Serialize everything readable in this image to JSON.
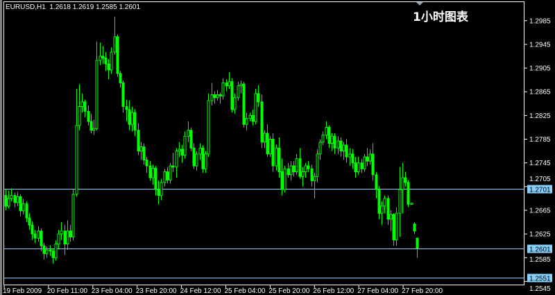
{
  "header": {
    "symbol": "EURUSD,H1",
    "ohlc": "1.2618 1.2619 1.2585 1.2601"
  },
  "title": "1小时图表",
  "colors": {
    "background": "#000000",
    "candle": "#00FF00",
    "frame": "#FFFFFF",
    "hline": "#87CEFA",
    "label_bg": "#87CEFA"
  },
  "chart_data": {
    "type": "candlestick",
    "ylim": [
      1.2539,
      1.3017
    ],
    "yticks": [
      "1.2985",
      "1.2945",
      "1.2905",
      "1.2865",
      "1.2825",
      "1.2785",
      "1.2745",
      "1.2705",
      "1.2665",
      "1.2625",
      "1.2585",
      "1.2545"
    ],
    "xticks": [
      "19 Feb 2009",
      "20 Feb 11:00",
      "23 Feb 04:00",
      "23 Feb 20:00",
      "24 Feb 12:00",
      "25 Feb 04:00",
      "25 Feb 20:00",
      "26 Feb 12:00",
      "27 Feb 04:00",
      "27 Feb 20:00"
    ],
    "hlines": [
      "1.2701",
      "1.2601",
      "1.2551"
    ],
    "ohlc": [
      [
        1.269,
        1.27,
        1.2665,
        1.2672
      ],
      [
        1.2672,
        1.2698,
        1.2668,
        1.2685
      ],
      [
        1.2685,
        1.2702,
        1.268,
        1.269
      ],
      [
        1.269,
        1.2695,
        1.267,
        1.2678
      ],
      [
        1.2678,
        1.2696,
        1.2672,
        1.2688
      ],
      [
        1.2688,
        1.2692,
        1.2655,
        1.2664
      ],
      [
        1.2664,
        1.2684,
        1.2658,
        1.2676
      ],
      [
        1.2676,
        1.268,
        1.2645,
        1.2652
      ],
      [
        1.2652,
        1.266,
        1.2632,
        1.264
      ],
      [
        1.264,
        1.2646,
        1.2615,
        1.2625
      ],
      [
        1.2625,
        1.2632,
        1.261,
        1.2618
      ],
      [
        1.2618,
        1.2638,
        1.2612,
        1.263
      ],
      [
        1.263,
        1.2634,
        1.2596,
        1.2605
      ],
      [
        1.2605,
        1.261,
        1.2582,
        1.2592
      ],
      [
        1.2592,
        1.2604,
        1.2585,
        1.2598
      ],
      [
        1.2598,
        1.2606,
        1.2588,
        1.2596
      ],
      [
        1.2596,
        1.26,
        1.2575,
        1.2585
      ],
      [
        1.2585,
        1.2614,
        1.258,
        1.2608
      ],
      [
        1.2608,
        1.2632,
        1.26,
        1.2625
      ],
      [
        1.2625,
        1.2645,
        1.2615,
        1.263
      ],
      [
        1.263,
        1.264,
        1.259,
        1.2608
      ],
      [
        1.2608,
        1.2648,
        1.2598,
        1.263
      ],
      [
        1.263,
        1.264,
        1.2612,
        1.262
      ],
      [
        1.262,
        1.27,
        1.2614,
        1.2692
      ],
      [
        1.2692,
        1.287,
        1.2688,
        1.2808
      ],
      [
        1.2808,
        1.2878,
        1.28,
        1.284
      ],
      [
        1.284,
        1.2862,
        1.283,
        1.2848
      ],
      [
        1.2848,
        1.2852,
        1.2822,
        1.2832
      ],
      [
        1.2832,
        1.2842,
        1.2808,
        1.2815
      ],
      [
        1.2815,
        1.2828,
        1.2795,
        1.28
      ],
      [
        1.28,
        1.2818,
        1.2792,
        1.2803
      ],
      [
        1.2803,
        1.295,
        1.28,
        1.2918
      ],
      [
        1.2918,
        1.2948,
        1.291,
        1.2925
      ],
      [
        1.2925,
        1.2942,
        1.2912,
        1.2922
      ],
      [
        1.2922,
        1.2932,
        1.29,
        1.2912
      ],
      [
        1.2912,
        1.292,
        1.2886,
        1.2902
      ],
      [
        1.2902,
        1.294,
        1.2895,
        1.2932
      ],
      [
        1.2932,
        1.2992,
        1.2928,
        1.2958
      ],
      [
        1.2958,
        1.2962,
        1.289,
        1.2896
      ],
      [
        1.2896,
        1.29,
        1.2872,
        1.288
      ],
      [
        1.288,
        1.2884,
        1.283,
        1.284
      ],
      [
        1.284,
        1.2852,
        1.2815,
        1.2835
      ],
      [
        1.2835,
        1.285,
        1.28,
        1.281
      ],
      [
        1.281,
        1.284,
        1.2798,
        1.283
      ],
      [
        1.283,
        1.2836,
        1.279,
        1.28
      ],
      [
        1.28,
        1.2812,
        1.2758,
        1.2765
      ],
      [
        1.2765,
        1.278,
        1.275,
        1.2772
      ],
      [
        1.2772,
        1.2778,
        1.2742,
        1.275
      ],
      [
        1.275,
        1.2755,
        1.2728,
        1.274
      ],
      [
        1.274,
        1.2748,
        1.2715,
        1.272
      ],
      [
        1.272,
        1.2742,
        1.2708,
        1.2736
      ],
      [
        1.2736,
        1.274,
        1.269,
        1.27
      ],
      [
        1.27,
        1.2715,
        1.2675,
        1.269
      ],
      [
        1.269,
        1.2718,
        1.2682,
        1.2712
      ],
      [
        1.2712,
        1.2735,
        1.2705,
        1.273
      ],
      [
        1.273,
        1.2738,
        1.271,
        1.2716
      ],
      [
        1.2716,
        1.2745,
        1.271,
        1.274
      ],
      [
        1.274,
        1.2762,
        1.273,
        1.2738
      ],
      [
        1.2738,
        1.277,
        1.272,
        1.2765
      ],
      [
        1.2765,
        1.278,
        1.2755,
        1.2768
      ],
      [
        1.2768,
        1.2775,
        1.2745,
        1.2758
      ],
      [
        1.2758,
        1.2798,
        1.2752,
        1.279
      ],
      [
        1.279,
        1.2815,
        1.278,
        1.28
      ],
      [
        1.28,
        1.2805,
        1.2765,
        1.277
      ],
      [
        1.277,
        1.2778,
        1.2735,
        1.274
      ],
      [
        1.274,
        1.2765,
        1.2732,
        1.276
      ],
      [
        1.276,
        1.2778,
        1.275,
        1.277
      ],
      [
        1.277,
        1.2775,
        1.2728,
        1.2735
      ],
      [
        1.2735,
        1.2765,
        1.2728,
        1.276
      ],
      [
        1.276,
        1.2862,
        1.2755,
        1.285
      ],
      [
        1.285,
        1.288,
        1.2842,
        1.286
      ],
      [
        1.286,
        1.2866,
        1.2845,
        1.2855
      ],
      [
        1.2855,
        1.2868,
        1.285,
        1.286
      ],
      [
        1.286,
        1.2864,
        1.2845,
        1.2858
      ],
      [
        1.2858,
        1.2888,
        1.2852,
        1.288
      ],
      [
        1.288,
        1.2886,
        1.2866,
        1.2875
      ],
      [
        1.2875,
        1.2898,
        1.287,
        1.2882
      ],
      [
        1.2882,
        1.2888,
        1.283,
        1.2835
      ],
      [
        1.2835,
        1.2862,
        1.2828,
        1.2855
      ],
      [
        1.2855,
        1.2882,
        1.285,
        1.2875
      ],
      [
        1.2875,
        1.2884,
        1.2862,
        1.2878
      ],
      [
        1.2878,
        1.2882,
        1.2805,
        1.281
      ],
      [
        1.281,
        1.283,
        1.28,
        1.282
      ],
      [
        1.282,
        1.283,
        1.2815,
        1.2825
      ],
      [
        1.2825,
        1.2835,
        1.2808,
        1.2815
      ],
      [
        1.2815,
        1.287,
        1.281,
        1.2862
      ],
      [
        1.2862,
        1.2876,
        1.284,
        1.2848
      ],
      [
        1.2848,
        1.286,
        1.277,
        1.278
      ],
      [
        1.278,
        1.28,
        1.277,
        1.2795
      ],
      [
        1.2795,
        1.281,
        1.2755,
        1.276
      ],
      [
        1.276,
        1.279,
        1.2755,
        1.2785
      ],
      [
        1.2785,
        1.2795,
        1.273,
        1.274
      ],
      [
        1.274,
        1.2776,
        1.2732,
        1.277
      ],
      [
        1.277,
        1.2788,
        1.272,
        1.273
      ],
      [
        1.273,
        1.2752,
        1.269,
        1.27
      ],
      [
        1.27,
        1.274,
        1.2695,
        1.2735
      ],
      [
        1.2735,
        1.2745,
        1.272,
        1.2725
      ],
      [
        1.2725,
        1.2748,
        1.2715,
        1.274
      ],
      [
        1.274,
        1.2748,
        1.2722,
        1.273
      ],
      [
        1.273,
        1.276,
        1.2725,
        1.2752
      ],
      [
        1.2752,
        1.277,
        1.2718,
        1.2722
      ],
      [
        1.2722,
        1.2738,
        1.2705,
        1.273
      ],
      [
        1.273,
        1.2745,
        1.272,
        1.274
      ],
      [
        1.274,
        1.2748,
        1.273,
        1.2735
      ],
      [
        1.2735,
        1.2742,
        1.2705,
        1.2715
      ],
      [
        1.2715,
        1.2728,
        1.2685,
        1.2722
      ],
      [
        1.2722,
        1.2768,
        1.2712,
        1.276
      ],
      [
        1.276,
        1.2785,
        1.275,
        1.278
      ],
      [
        1.278,
        1.2798,
        1.2775,
        1.2792
      ],
      [
        1.2792,
        1.2815,
        1.2785,
        1.2805
      ],
      [
        1.2805,
        1.2808,
        1.277,
        1.2778
      ],
      [
        1.2778,
        1.2795,
        1.2765,
        1.279
      ],
      [
        1.279,
        1.2795,
        1.276,
        1.277
      ],
      [
        1.277,
        1.279,
        1.276,
        1.2782
      ],
      [
        1.2782,
        1.2788,
        1.2755,
        1.2765
      ],
      [
        1.2765,
        1.278,
        1.275,
        1.2775
      ],
      [
        1.2775,
        1.2785,
        1.2745,
        1.2755
      ],
      [
        1.2755,
        1.277,
        1.274,
        1.276
      ],
      [
        1.276,
        1.2768,
        1.2735,
        1.2745
      ],
      [
        1.2745,
        1.2755,
        1.272,
        1.273
      ],
      [
        1.273,
        1.2755,
        1.2725,
        1.2745
      ],
      [
        1.2745,
        1.2752,
        1.2728,
        1.2735
      ],
      [
        1.2735,
        1.276,
        1.273,
        1.2755
      ],
      [
        1.2755,
        1.277,
        1.274,
        1.2748
      ],
      [
        1.2748,
        1.2768,
        1.2742,
        1.276
      ],
      [
        1.276,
        1.2778,
        1.2715,
        1.2725
      ],
      [
        1.2725,
        1.273,
        1.2685,
        1.27
      ],
      [
        1.27,
        1.2706,
        1.265,
        1.266
      ],
      [
        1.266,
        1.268,
        1.264,
        1.2672
      ],
      [
        1.2672,
        1.269,
        1.266,
        1.2685
      ],
      [
        1.2685,
        1.269,
        1.264,
        1.265
      ],
      [
        1.265,
        1.2665,
        1.263,
        1.2658
      ],
      [
        1.2658,
        1.266,
        1.2605,
        1.2615
      ],
      [
        1.2615,
        1.267,
        1.2605,
        1.266
      ],
      [
        1.266,
        1.2738,
        1.262,
        1.27
      ],
      [
        1.27,
        1.2745,
        1.266,
        1.272
      ],
      [
        1.272,
        1.273,
        1.2705,
        1.2712
      ],
      [
        1.2712,
        1.2716,
        1.267,
        1.2675
      ],
      [
        1.2675,
        1.2677,
        1.2675,
        1.2677
      ],
      [
        1.2642,
        1.2645,
        1.2625,
        1.263
      ],
      [
        1.2618,
        1.2619,
        1.2585,
        1.2601
      ]
    ]
  }
}
